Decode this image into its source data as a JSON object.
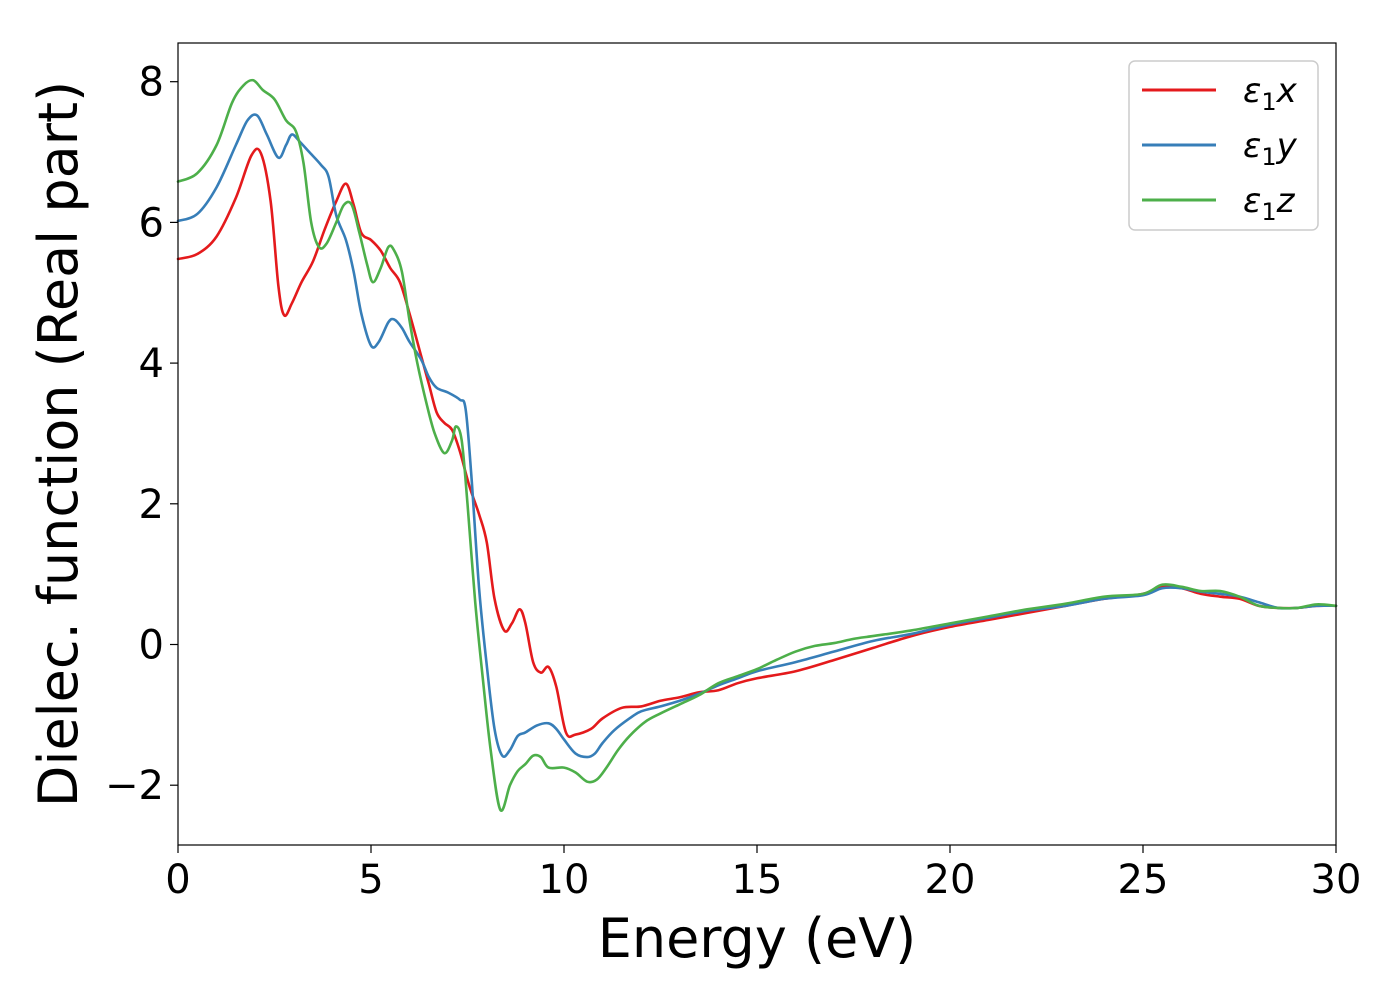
{
  "chart_data": {
    "type": "line",
    "xlabel": "Energy (eV)",
    "ylabel": "Dielec. function (Real part)",
    "xlim": [
      0,
      30
    ],
    "ylim": [
      -2.85,
      8.55
    ],
    "xticks": [
      0,
      5,
      10,
      15,
      20,
      25,
      30
    ],
    "xtick_labels": [
      "0",
      "5",
      "10",
      "15",
      "20",
      "25",
      "30"
    ],
    "yticks": [
      -2,
      0,
      2,
      4,
      6,
      8
    ],
    "ytick_labels": [
      "−2",
      "0",
      "2",
      "4",
      "6",
      "8"
    ],
    "grid": false,
    "legend": {
      "position": "top-right",
      "entries": [
        {
          "symbol": "ε",
          "sub": "1",
          "axis": "x"
        },
        {
          "symbol": "ε",
          "sub": "1",
          "axis": "y"
        },
        {
          "symbol": "ε",
          "sub": "1",
          "axis": "z"
        }
      ]
    },
    "series": [
      {
        "name": "ε1x",
        "color": "#e41a1c",
        "points": [
          [
            0,
            5.48
          ],
          [
            0.5,
            5.55
          ],
          [
            1,
            5.8
          ],
          [
            1.5,
            6.35
          ],
          [
            1.9,
            6.95
          ],
          [
            2.15,
            6.98
          ],
          [
            2.4,
            6.3
          ],
          [
            2.6,
            5.1
          ],
          [
            2.75,
            4.68
          ],
          [
            2.95,
            4.85
          ],
          [
            3.2,
            5.15
          ],
          [
            3.5,
            5.45
          ],
          [
            3.8,
            5.9
          ],
          [
            4.1,
            6.3
          ],
          [
            4.35,
            6.55
          ],
          [
            4.55,
            6.25
          ],
          [
            4.75,
            5.85
          ],
          [
            5.0,
            5.75
          ],
          [
            5.25,
            5.6
          ],
          [
            5.5,
            5.35
          ],
          [
            5.75,
            5.15
          ],
          [
            6.0,
            4.7
          ],
          [
            6.3,
            4.1
          ],
          [
            6.5,
            3.7
          ],
          [
            6.7,
            3.3
          ],
          [
            6.9,
            3.15
          ],
          [
            7.1,
            3.05
          ],
          [
            7.3,
            2.75
          ],
          [
            7.55,
            2.25
          ],
          [
            7.8,
            1.85
          ],
          [
            8.0,
            1.45
          ],
          [
            8.2,
            0.65
          ],
          [
            8.45,
            0.2
          ],
          [
            8.65,
            0.3
          ],
          [
            8.85,
            0.5
          ],
          [
            9.0,
            0.3
          ],
          [
            9.2,
            -0.25
          ],
          [
            9.4,
            -0.4
          ],
          [
            9.6,
            -0.32
          ],
          [
            9.8,
            -0.6
          ],
          [
            10.05,
            -1.25
          ],
          [
            10.3,
            -1.28
          ],
          [
            10.7,
            -1.2
          ],
          [
            11.0,
            -1.05
          ],
          [
            11.5,
            -0.9
          ],
          [
            12.0,
            -0.88
          ],
          [
            12.5,
            -0.8
          ],
          [
            13.0,
            -0.75
          ],
          [
            13.5,
            -0.68
          ],
          [
            14.0,
            -0.65
          ],
          [
            14.5,
            -0.55
          ],
          [
            15.0,
            -0.48
          ],
          [
            16.0,
            -0.38
          ],
          [
            17.0,
            -0.22
          ],
          [
            18.0,
            -0.05
          ],
          [
            19.0,
            0.12
          ],
          [
            20.0,
            0.25
          ],
          [
            21.0,
            0.35
          ],
          [
            22.0,
            0.45
          ],
          [
            23.0,
            0.55
          ],
          [
            24.0,
            0.65
          ],
          [
            25.0,
            0.72
          ],
          [
            25.5,
            0.82
          ],
          [
            26.0,
            0.8
          ],
          [
            26.5,
            0.72
          ],
          [
            27.0,
            0.68
          ],
          [
            27.5,
            0.65
          ],
          [
            28.0,
            0.55
          ],
          [
            28.5,
            0.52
          ],
          [
            29.0,
            0.52
          ],
          [
            29.5,
            0.55
          ],
          [
            30.0,
            0.55
          ]
        ]
      },
      {
        "name": "ε1y",
        "color": "#377eb8",
        "points": [
          [
            0,
            6.02
          ],
          [
            0.5,
            6.12
          ],
          [
            1,
            6.5
          ],
          [
            1.5,
            7.1
          ],
          [
            1.8,
            7.45
          ],
          [
            2.05,
            7.52
          ],
          [
            2.3,
            7.25
          ],
          [
            2.6,
            6.92
          ],
          [
            2.8,
            7.1
          ],
          [
            2.95,
            7.25
          ],
          [
            3.15,
            7.15
          ],
          [
            3.4,
            7.0
          ],
          [
            3.7,
            6.82
          ],
          [
            3.9,
            6.65
          ],
          [
            4.1,
            6.1
          ],
          [
            4.35,
            5.75
          ],
          [
            4.55,
            5.3
          ],
          [
            4.75,
            4.7
          ],
          [
            5.0,
            4.25
          ],
          [
            5.2,
            4.3
          ],
          [
            5.45,
            4.58
          ],
          [
            5.6,
            4.62
          ],
          [
            5.8,
            4.5
          ],
          [
            6.0,
            4.3
          ],
          [
            6.3,
            4.05
          ],
          [
            6.5,
            3.8
          ],
          [
            6.7,
            3.65
          ],
          [
            7.0,
            3.58
          ],
          [
            7.3,
            3.48
          ],
          [
            7.45,
            3.35
          ],
          [
            7.6,
            2.4
          ],
          [
            7.8,
            0.8
          ],
          [
            8.0,
            -0.3
          ],
          [
            8.2,
            -1.2
          ],
          [
            8.4,
            -1.58
          ],
          [
            8.6,
            -1.5
          ],
          [
            8.8,
            -1.3
          ],
          [
            9.0,
            -1.25
          ],
          [
            9.3,
            -1.15
          ],
          [
            9.6,
            -1.12
          ],
          [
            9.8,
            -1.2
          ],
          [
            10.0,
            -1.35
          ],
          [
            10.3,
            -1.55
          ],
          [
            10.6,
            -1.6
          ],
          [
            10.8,
            -1.55
          ],
          [
            11.0,
            -1.4
          ],
          [
            11.3,
            -1.22
          ],
          [
            11.7,
            -1.05
          ],
          [
            12.0,
            -0.95
          ],
          [
            12.5,
            -0.88
          ],
          [
            13.0,
            -0.8
          ],
          [
            13.5,
            -0.7
          ],
          [
            14.0,
            -0.58
          ],
          [
            14.5,
            -0.48
          ],
          [
            15.0,
            -0.38
          ],
          [
            16.0,
            -0.25
          ],
          [
            17.0,
            -0.1
          ],
          [
            18.0,
            0.05
          ],
          [
            19.0,
            0.15
          ],
          [
            20.0,
            0.28
          ],
          [
            21.0,
            0.38
          ],
          [
            22.0,
            0.48
          ],
          [
            23.0,
            0.55
          ],
          [
            24.0,
            0.65
          ],
          [
            25.0,
            0.7
          ],
          [
            25.5,
            0.8
          ],
          [
            26.0,
            0.8
          ],
          [
            26.5,
            0.75
          ],
          [
            27.0,
            0.72
          ],
          [
            27.5,
            0.68
          ],
          [
            28.0,
            0.6
          ],
          [
            28.5,
            0.52
          ],
          [
            29.0,
            0.52
          ],
          [
            29.5,
            0.55
          ],
          [
            30.0,
            0.55
          ]
        ]
      },
      {
        "name": "ε1z",
        "color": "#4daf4a",
        "points": [
          [
            0,
            6.58
          ],
          [
            0.5,
            6.7
          ],
          [
            1,
            7.1
          ],
          [
            1.4,
            7.7
          ],
          [
            1.7,
            7.95
          ],
          [
            1.95,
            8.02
          ],
          [
            2.2,
            7.88
          ],
          [
            2.5,
            7.75
          ],
          [
            2.8,
            7.45
          ],
          [
            3.05,
            7.3
          ],
          [
            3.25,
            6.85
          ],
          [
            3.45,
            6.0
          ],
          [
            3.65,
            5.65
          ],
          [
            3.85,
            5.7
          ],
          [
            4.1,
            6.0
          ],
          [
            4.3,
            6.25
          ],
          [
            4.5,
            6.25
          ],
          [
            4.7,
            5.85
          ],
          [
            4.9,
            5.4
          ],
          [
            5.05,
            5.15
          ],
          [
            5.25,
            5.35
          ],
          [
            5.45,
            5.65
          ],
          [
            5.6,
            5.6
          ],
          [
            5.8,
            5.3
          ],
          [
            6.0,
            4.6
          ],
          [
            6.2,
            4.0
          ],
          [
            6.45,
            3.4
          ],
          [
            6.65,
            3.0
          ],
          [
            6.9,
            2.72
          ],
          [
            7.1,
            2.9
          ],
          [
            7.2,
            3.1
          ],
          [
            7.35,
            2.9
          ],
          [
            7.5,
            2.0
          ],
          [
            7.7,
            0.6
          ],
          [
            7.9,
            -0.5
          ],
          [
            8.1,
            -1.5
          ],
          [
            8.35,
            -2.35
          ],
          [
            8.6,
            -2.0
          ],
          [
            8.8,
            -1.8
          ],
          [
            9.0,
            -1.7
          ],
          [
            9.2,
            -1.58
          ],
          [
            9.4,
            -1.6
          ],
          [
            9.6,
            -1.75
          ],
          [
            10.0,
            -1.75
          ],
          [
            10.3,
            -1.82
          ],
          [
            10.6,
            -1.95
          ],
          [
            10.85,
            -1.92
          ],
          [
            11.1,
            -1.75
          ],
          [
            11.4,
            -1.5
          ],
          [
            11.7,
            -1.3
          ],
          [
            12.1,
            -1.1
          ],
          [
            12.5,
            -0.98
          ],
          [
            13.0,
            -0.85
          ],
          [
            13.5,
            -0.72
          ],
          [
            14.0,
            -0.55
          ],
          [
            14.5,
            -0.45
          ],
          [
            15.0,
            -0.35
          ],
          [
            15.5,
            -0.22
          ],
          [
            16.0,
            -0.1
          ],
          [
            16.5,
            -0.02
          ],
          [
            17.0,
            0.02
          ],
          [
            17.5,
            0.08
          ],
          [
            18.0,
            0.12
          ],
          [
            19.0,
            0.2
          ],
          [
            20.0,
            0.3
          ],
          [
            21.0,
            0.4
          ],
          [
            22.0,
            0.5
          ],
          [
            23.0,
            0.58
          ],
          [
            24.0,
            0.68
          ],
          [
            25.0,
            0.72
          ],
          [
            25.5,
            0.85
          ],
          [
            26.0,
            0.82
          ],
          [
            26.5,
            0.76
          ],
          [
            27.0,
            0.76
          ],
          [
            27.5,
            0.68
          ],
          [
            28.0,
            0.55
          ],
          [
            28.5,
            0.52
          ],
          [
            29.0,
            0.52
          ],
          [
            29.5,
            0.57
          ],
          [
            30.0,
            0.55
          ]
        ]
      }
    ]
  }
}
